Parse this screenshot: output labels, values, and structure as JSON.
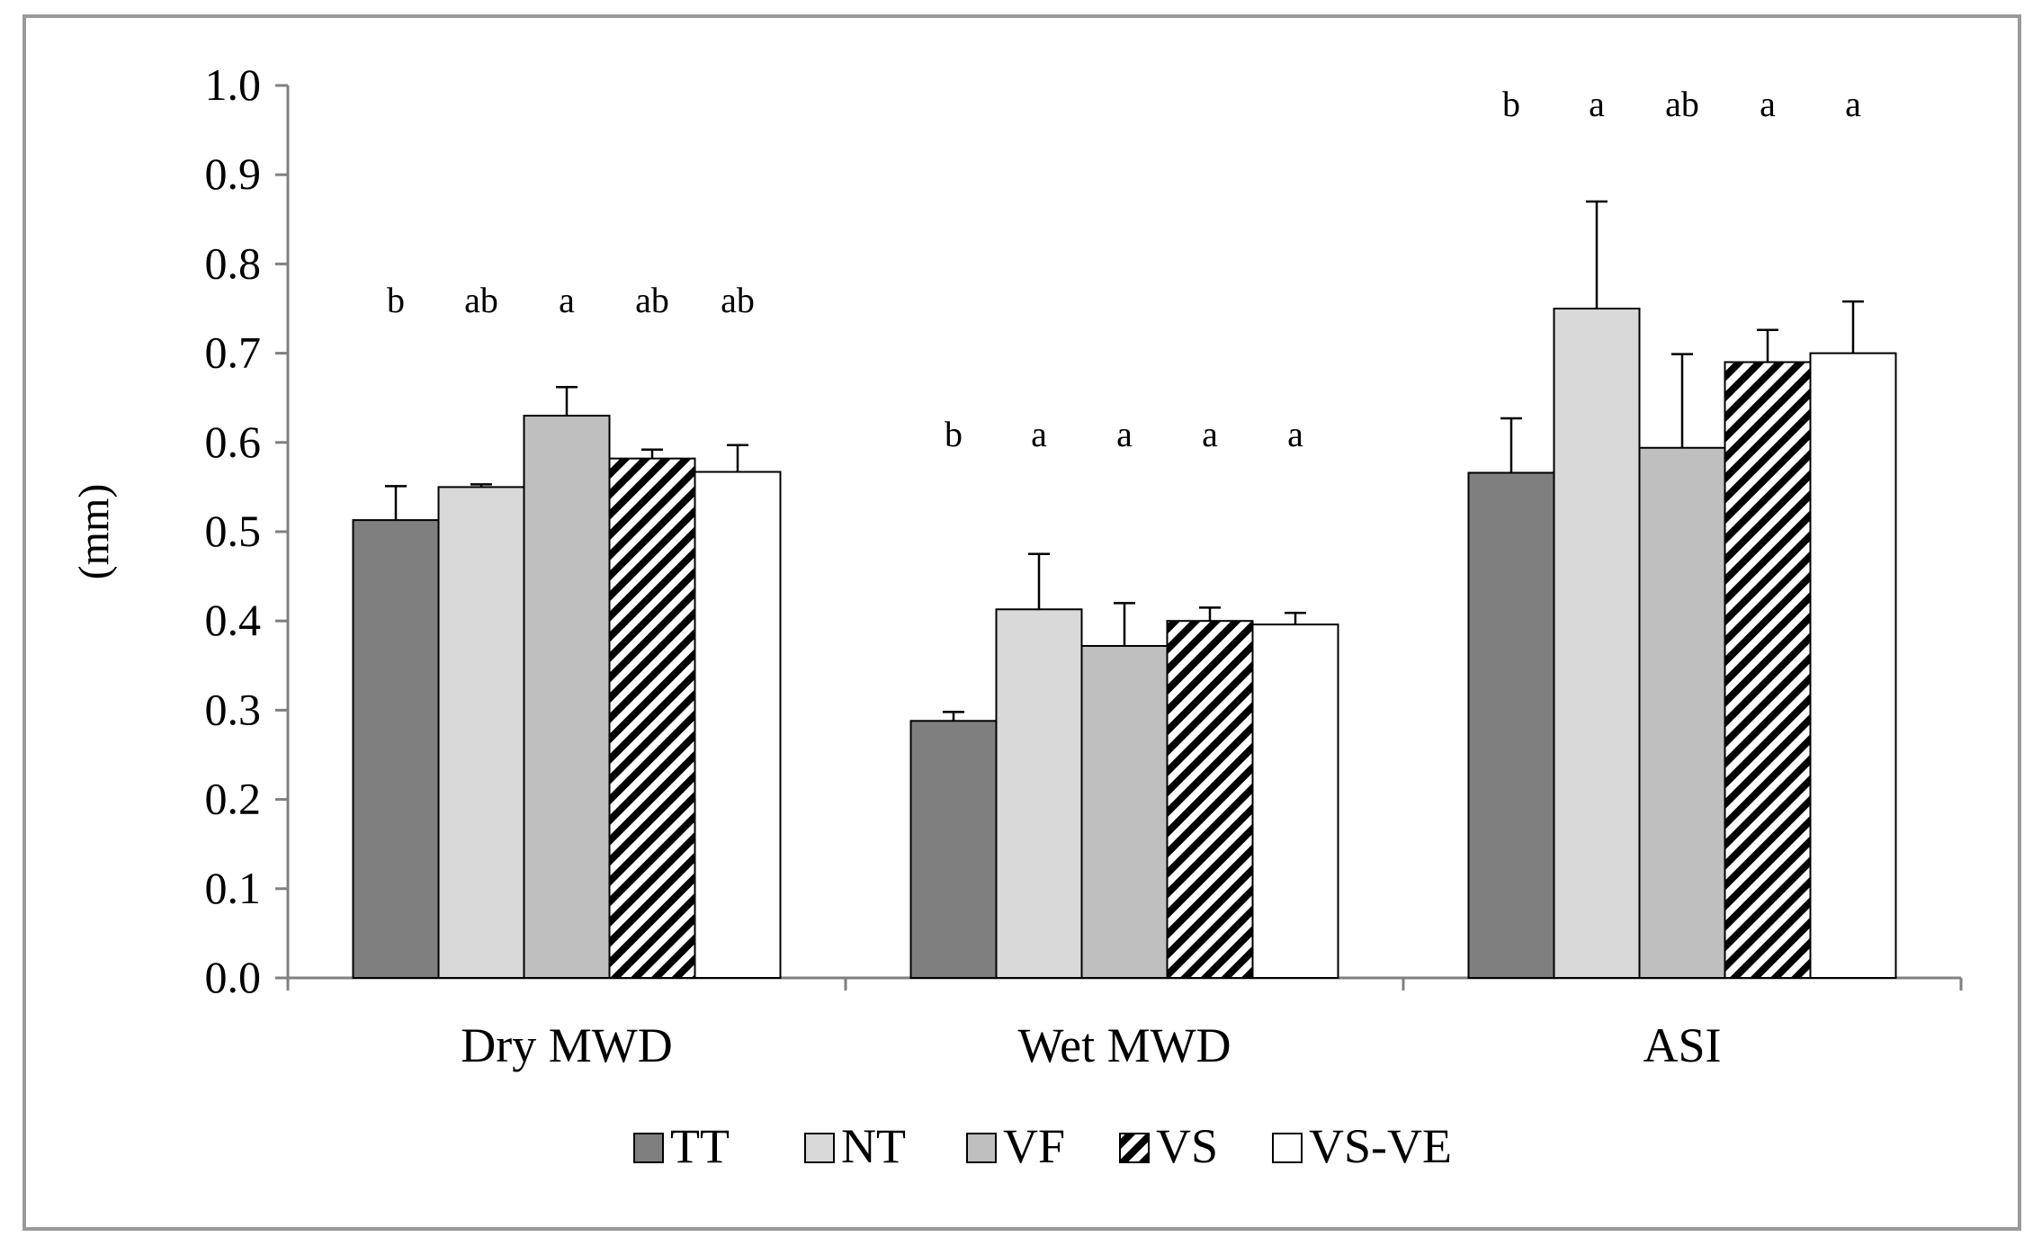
{
  "chart_data": {
    "type": "bar",
    "categories": [
      "Dry MWD",
      "Wet MWD",
      "ASI"
    ],
    "ylabel": "(mm)",
    "xlabel": "",
    "ylim": [
      0,
      1.0
    ],
    "yticks": [
      "0.0",
      "0.1",
      "0.2",
      "0.3",
      "0.4",
      "0.5",
      "0.6",
      "0.7",
      "0.8",
      "0.9",
      "1.0"
    ],
    "grid": false,
    "legend_position": "bottom-center",
    "series": [
      {
        "name": "TT",
        "values": [
          0.513,
          0.288,
          0.566
        ],
        "errors": [
          0.038,
          0.01,
          0.061
        ],
        "letters": [
          "b",
          "b",
          "b"
        ],
        "fill": "#7f7f7f",
        "pattern": "solid"
      },
      {
        "name": "NT",
        "values": [
          0.55,
          0.413,
          0.75
        ],
        "errors": [
          0.003,
          0.062,
          0.12
        ],
        "letters": [
          "ab",
          "a",
          "a"
        ],
        "fill": "#d9d9d9",
        "pattern": "solid"
      },
      {
        "name": "VF",
        "values": [
          0.63,
          0.372,
          0.594
        ],
        "errors": [
          0.032,
          0.048,
          0.105
        ],
        "letters": [
          "a",
          "a",
          "ab"
        ],
        "fill": "#bfbfbf",
        "pattern": "solid"
      },
      {
        "name": "VS",
        "values": [
          0.582,
          0.4,
          0.69
        ],
        "errors": [
          0.01,
          0.015,
          0.036
        ],
        "letters": [
          "ab",
          "a",
          "a"
        ],
        "fill": "#ffffff",
        "pattern": "diagonal-hatch"
      },
      {
        "name": "VS-VE",
        "values": [
          0.567,
          0.396,
          0.7
        ],
        "errors": [
          0.03,
          0.013,
          0.058
        ],
        "letters": [
          "ab",
          "a",
          "a"
        ],
        "fill": "#ffffff",
        "pattern": "solid"
      }
    ],
    "letter_levels": [
      0.76,
      0.61,
      0.98
    ]
  }
}
